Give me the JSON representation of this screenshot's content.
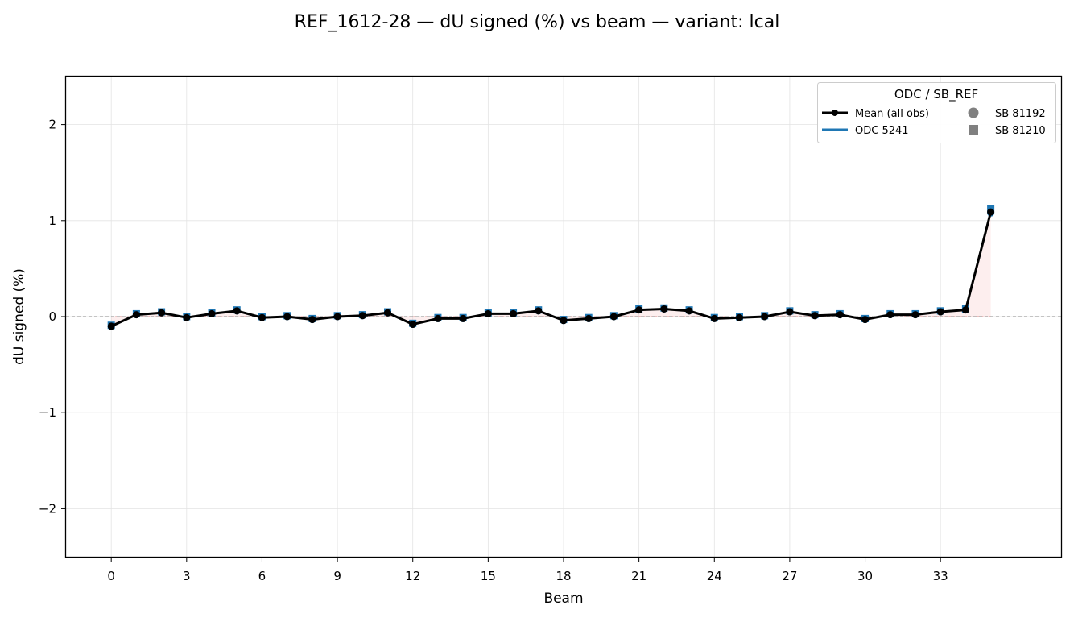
{
  "figure_title": "REF_1612-28  —  dU signed (%) vs beam  —  variant: lcal",
  "chart_data": {
    "type": "line",
    "title": "REF_1612-28  —  dU signed (%) vs beam  —  variant: lcal",
    "xlabel": "Beam",
    "ylabel": "dU signed (%)",
    "xlim": [
      -1.8,
      37.8
    ],
    "ylim": [
      -2.5,
      2.5
    ],
    "xticks": [
      0,
      3,
      6,
      9,
      12,
      15,
      18,
      21,
      24,
      27,
      30,
      33
    ],
    "xtick_labels": [
      "0",
      "3",
      "6",
      "9",
      "12",
      "15",
      "18",
      "21",
      "24",
      "27",
      "30",
      "33"
    ],
    "yticks": [
      -2,
      -1,
      0,
      1,
      2
    ],
    "ytick_labels": [
      "−2",
      "−1",
      "0",
      "1",
      "2"
    ],
    "grid": true,
    "reference_line_y": 0,
    "legend": {
      "title": "ODC / SB_REF",
      "placement": "top-right",
      "entries": [
        {
          "label": "Mean (all obs)",
          "kind": "line-marker",
          "color": "#000000"
        },
        {
          "label": "SB 81192",
          "kind": "circle",
          "color": "#808080"
        },
        {
          "label": "ODC 5241",
          "kind": "line",
          "color": "#1f77b4"
        },
        {
          "label": "SB 81210",
          "kind": "square",
          "color": "#808080"
        }
      ]
    },
    "x": [
      0,
      1,
      2,
      3,
      4,
      5,
      6,
      7,
      8,
      9,
      10,
      11,
      12,
      13,
      14,
      15,
      16,
      17,
      18,
      19,
      20,
      21,
      22,
      23,
      24,
      25,
      26,
      27,
      28,
      29,
      30,
      31,
      32,
      33,
      34,
      35
    ],
    "series": [
      {
        "name": "Mean (all obs)",
        "color": "#000000",
        "values": [
          -0.1,
          0.02,
          0.04,
          -0.01,
          0.03,
          0.06,
          -0.01,
          0.0,
          -0.03,
          0.0,
          0.01,
          0.04,
          -0.08,
          -0.02,
          -0.02,
          0.03,
          0.03,
          0.06,
          -0.04,
          -0.02,
          0.0,
          0.07,
          0.08,
          0.06,
          -0.02,
          -0.01,
          0.0,
          0.05,
          0.01,
          0.02,
          -0.03,
          0.02,
          0.02,
          0.05,
          0.07,
          1.09
        ]
      },
      {
        "name": "ODC 5241",
        "color": "#1f77b4",
        "marker_sb_81192": [
          -0.1,
          0.02,
          0.04,
          -0.01,
          0.03,
          0.06,
          -0.01,
          0.0,
          -0.03,
          0.0,
          0.01,
          0.04,
          -0.08,
          -0.02,
          -0.02,
          0.03,
          0.03,
          0.06,
          -0.04,
          -0.02,
          0.0,
          0.07,
          0.08,
          0.06,
          -0.02,
          -0.01,
          0.0,
          0.05,
          0.01,
          0.02,
          -0.03,
          0.02,
          0.02,
          0.05,
          0.07,
          1.08
        ],
        "marker_sb_81210": [
          -0.09,
          0.03,
          0.05,
          0.0,
          0.04,
          0.07,
          0.0,
          0.01,
          -0.02,
          0.01,
          0.02,
          0.05,
          -0.07,
          -0.01,
          -0.01,
          0.04,
          0.04,
          0.07,
          -0.03,
          -0.01,
          0.01,
          0.08,
          0.09,
          0.07,
          -0.01,
          0.0,
          0.01,
          0.06,
          0.02,
          0.03,
          -0.02,
          0.03,
          0.03,
          0.06,
          0.08,
          1.12
        ]
      }
    ]
  }
}
